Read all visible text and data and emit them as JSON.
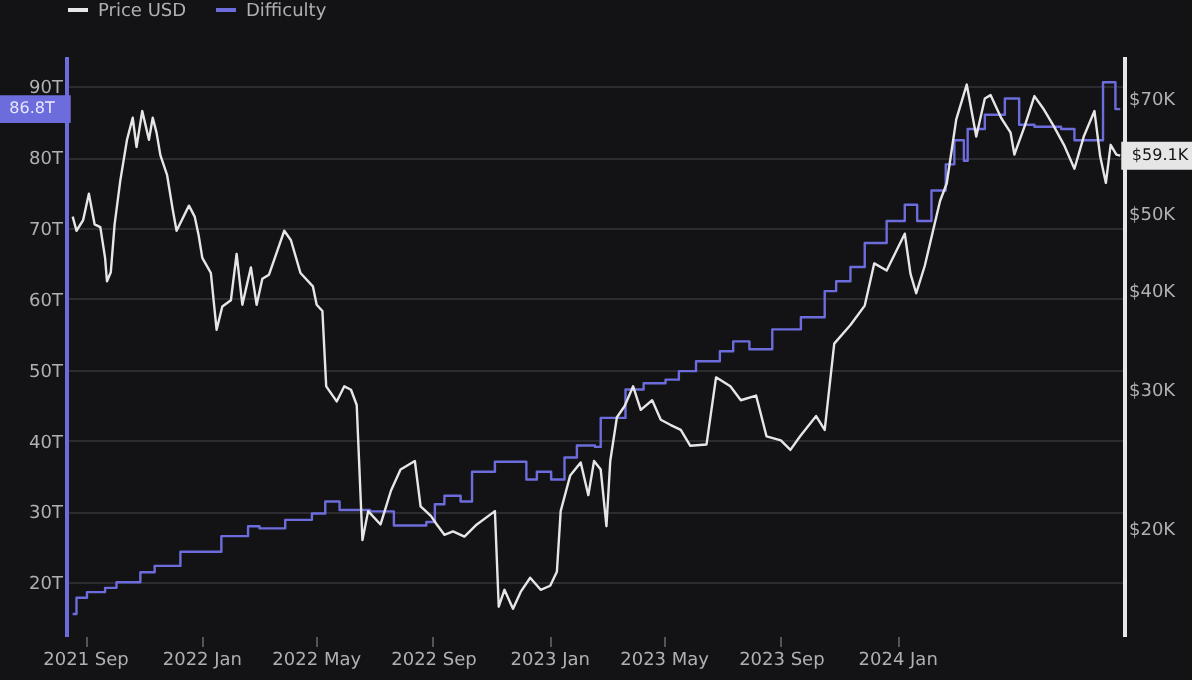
{
  "chart_data": {
    "type": "line",
    "legend": "top",
    "grid": "y",
    "log": "y2",
    "line_style": "solid",
    "marker": "none",
    "xlim": [
      "2021-08-12",
      "2024-08-26"
    ],
    "xticks": [
      {
        "value": "2021-09-01",
        "label": "2021 Sep"
      },
      {
        "value": "2022-01-01",
        "label": "2022 Jan"
      },
      {
        "value": "2022-05-01",
        "label": "2022 May"
      },
      {
        "value": "2022-09-01",
        "label": "2022 Sep"
      },
      {
        "value": "2023-01-01",
        "label": "2023 Jan"
      },
      {
        "value": "2023-05-01",
        "label": "2023 May"
      },
      {
        "value": "2023-09-01",
        "label": "2023 Sep"
      },
      {
        "value": "2024-01-01",
        "label": "2024 Jan"
      }
    ],
    "ylim": [
      12.4,
      94.3
    ],
    "yticks": [
      {
        "value": 20,
        "label": "20T"
      },
      {
        "value": 30,
        "label": "30T"
      },
      {
        "value": 40,
        "label": "40T"
      },
      {
        "value": 50,
        "label": "50T"
      },
      {
        "value": 60,
        "label": "60T"
      },
      {
        "value": 70,
        "label": "70T"
      },
      {
        "value": 80,
        "label": "80T"
      },
      {
        "value": 90,
        "label": "90T"
      }
    ],
    "y2lim": [
      14600,
      79000
    ],
    "y2ticks": [
      {
        "value": 20000,
        "label": "$20K"
      },
      {
        "value": 30000,
        "label": "$30K"
      },
      {
        "value": 40000,
        "label": "$40K"
      },
      {
        "value": 50000,
        "label": "$50K"
      },
      {
        "value": 70000,
        "label": "$70K"
      }
    ],
    "annotations": [
      "$59.1K",
      "86.8T"
    ],
    "series": [
      {
        "name": "Price USD",
        "axis": "y2",
        "color": "#e6e6e6",
        "x": [
          "2021-08-19",
          "2021-08-23",
          "2021-08-30",
          "2021-09-05",
          "2021-09-11",
          "2021-09-17",
          "2021-09-22",
          "2021-09-24",
          "2021-09-28",
          "2021-10-02",
          "2021-10-08",
          "2021-10-15",
          "2021-10-21",
          "2021-10-25",
          "2021-10-31",
          "2021-11-07",
          "2021-11-11",
          "2021-11-15",
          "2021-11-19",
          "2021-11-26",
          "2021-12-02",
          "2021-12-06",
          "2021-12-19",
          "2021-12-25",
          "2021-12-29",
          "2022-01-02",
          "2022-01-11",
          "2022-01-17",
          "2022-01-23",
          "2022-02-01",
          "2022-02-07",
          "2022-02-13",
          "2022-02-22",
          "2022-02-28",
          "2022-03-06",
          "2022-03-13",
          "2022-03-29",
          "2022-04-05",
          "2022-04-15",
          "2022-04-28",
          "2022-05-02",
          "2022-05-08",
          "2022-05-12",
          "2022-05-23",
          "2022-05-31",
          "2022-06-07",
          "2022-06-13",
          "2022-06-19",
          "2022-06-25",
          "2022-07-08",
          "2022-07-19",
          "2022-07-29",
          "2022-08-13",
          "2022-08-19",
          "2022-08-30",
          "2022-09-05",
          "2022-09-13",
          "2022-09-22",
          "2022-10-04",
          "2022-10-17",
          "2022-11-05",
          "2022-11-09",
          "2022-11-15",
          "2022-11-24",
          "2022-12-02",
          "2022-12-12",
          "2022-12-23",
          "2023-01-02",
          "2023-01-09",
          "2023-01-13",
          "2023-01-23",
          "2023-02-03",
          "2023-02-11",
          "2023-02-17",
          "2023-02-24",
          "2023-03-02",
          "2023-03-06",
          "2023-03-13",
          "2023-03-21",
          "2023-03-30",
          "2023-04-07",
          "2023-04-19",
          "2023-04-28",
          "2023-05-08",
          "2023-05-19",
          "2023-05-29",
          "2023-06-15",
          "2023-06-25",
          "2023-07-10",
          "2023-07-21",
          "2023-08-06",
          "2023-08-17",
          "2023-09-01",
          "2023-09-11",
          "2023-09-21",
          "2023-10-08",
          "2023-10-17",
          "2023-10-27",
          "2023-11-13",
          "2023-11-28",
          "2023-12-08",
          "2023-12-21",
          "2024-01-09",
          "2024-01-15",
          "2024-01-21",
          "2024-01-30",
          "2024-02-15",
          "2024-02-22",
          "2024-03-03",
          "2024-03-14",
          "2024-03-24",
          "2024-04-02",
          "2024-04-08",
          "2024-04-19",
          "2024-04-29",
          "2024-05-03",
          "2024-05-14",
          "2024-05-24",
          "2024-06-03",
          "2024-06-13",
          "2024-06-24",
          "2024-07-05",
          "2024-07-15",
          "2024-07-26",
          "2024-08-01",
          "2024-08-07",
          "2024-08-12",
          "2024-08-18",
          "2024-08-22"
        ],
        "values": [
          49500,
          47500,
          49000,
          52900,
          48400,
          48000,
          43900,
          41000,
          42100,
          48400,
          55000,
          61900,
          66000,
          60600,
          67300,
          61900,
          66000,
          63200,
          59200,
          55900,
          50500,
          47500,
          51100,
          49500,
          47000,
          43900,
          42000,
          35600,
          38100,
          38800,
          44400,
          38300,
          42700,
          38300,
          41300,
          41800,
          47500,
          46200,
          42000,
          40400,
          38300,
          37600,
          30200,
          28900,
          30200,
          29900,
          28600,
          19300,
          21000,
          20200,
          22300,
          23700,
          24300,
          21300,
          20700,
          20200,
          19600,
          19800,
          19500,
          20200,
          21000,
          15900,
          16700,
          15800,
          16600,
          17300,
          16700,
          16900,
          17600,
          21000,
          23300,
          24200,
          22000,
          24300,
          23700,
          20100,
          24300,
          27600,
          28500,
          30200,
          28200,
          29000,
          27400,
          27000,
          26600,
          25400,
          25500,
          31000,
          30200,
          29000,
          29400,
          26100,
          25800,
          25100,
          26100,
          27700,
          26600,
          34200,
          36100,
          38200,
          43200,
          42300,
          47100,
          41900,
          39600,
          42900,
          51800,
          54500,
          65700,
          72700,
          62500,
          69800,
          70500,
          66000,
          63200,
          59300,
          64500,
          70300,
          67600,
          64500,
          61000,
          56900,
          62600,
          67300,
          59000,
          54600,
          61000,
          59300,
          59100
        ]
      },
      {
        "name": "Difficulty",
        "type": "step",
        "axis": "y",
        "color": "#6c6cdc",
        "x": [
          "2021-08-19",
          "2021-08-23",
          "2021-09-03",
          "2021-09-22",
          "2021-10-04",
          "2021-10-29",
          "2021-11-13",
          "2021-12-10",
          "2022-01-22",
          "2022-02-19",
          "2022-03-03",
          "2022-03-30",
          "2022-04-27",
          "2022-05-11",
          "2022-05-26",
          "2022-06-27",
          "2022-07-22",
          "2022-08-25",
          "2022-09-03",
          "2022-09-13",
          "2022-09-30",
          "2022-10-12",
          "2022-11-05",
          "2022-12-08",
          "2022-12-19",
          "2023-01-03",
          "2023-01-17",
          "2023-01-30",
          "2023-02-18",
          "2023-02-24",
          "2023-03-22",
          "2023-04-10",
          "2023-05-03",
          "2023-05-17",
          "2023-06-04",
          "2023-06-29",
          "2023-07-13",
          "2023-07-30",
          "2023-08-23",
          "2023-09-22",
          "2023-10-17",
          "2023-10-29",
          "2023-11-13",
          "2023-11-28",
          "2023-12-21",
          "2024-01-09",
          "2024-01-22",
          "2024-02-06",
          "2024-02-21",
          "2024-03-01",
          "2024-03-11",
          "2024-03-15",
          "2024-04-02",
          "2024-04-23",
          "2024-05-08",
          "2024-05-24",
          "2024-06-21",
          "2024-07-05",
          "2024-08-04",
          "2024-08-17",
          "2024-08-22"
        ],
        "values": [
          15.5,
          17.8,
          18.6,
          19.2,
          20.0,
          21.4,
          22.3,
          24.3,
          26.5,
          27.9,
          27.6,
          28.8,
          29.7,
          31.4,
          30.2,
          30.0,
          28.0,
          28.5,
          31.0,
          32.2,
          31.4,
          35.6,
          37.0,
          34.5,
          35.6,
          34.5,
          37.6,
          39.3,
          39.1,
          43.2,
          47.2,
          48.1,
          48.6,
          49.8,
          51.2,
          52.6,
          54.0,
          52.9,
          55.7,
          57.4,
          61.1,
          62.5,
          64.5,
          67.9,
          71.0,
          73.3,
          71.0,
          75.3,
          79.0,
          82.4,
          79.5,
          84.0,
          86.0,
          88.3,
          84.6,
          84.3,
          84.0,
          82.4,
          90.6,
          86.8,
          86.8
        ]
      }
    ]
  }
}
